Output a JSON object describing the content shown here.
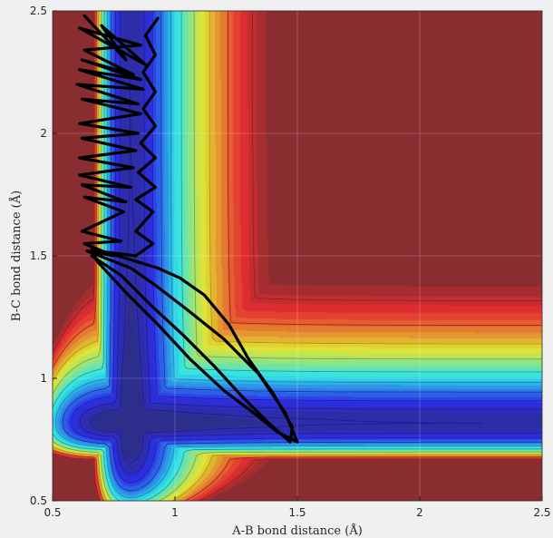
{
  "chart_data": {
    "type": "heatmap",
    "title": "",
    "xlabel": "A-B bond distance (Å)",
    "ylabel": "B-C bond distance (Å)",
    "xlim": [
      0.5,
      2.5
    ],
    "ylim": [
      0.5,
      2.5
    ],
    "x_ticks": [
      "0.5",
      "1",
      "1.5",
      "2",
      "2.5"
    ],
    "y_ticks": [
      "0.5",
      "1",
      "1.5",
      "2",
      "2.5"
    ],
    "grid": true,
    "colormap": "jet",
    "minimum_valley_bc_distance": 0.95,
    "trajectory": {
      "color": "#000000",
      "points": [
        [
          0.63,
          2.48
        ],
        [
          0.8,
          2.3
        ],
        [
          0.7,
          2.44
        ],
        [
          0.88,
          2.28
        ],
        [
          0.61,
          2.43
        ],
        [
          0.86,
          2.36
        ],
        [
          0.63,
          2.34
        ],
        [
          0.83,
          2.24
        ],
        [
          0.62,
          2.3
        ],
        [
          0.86,
          2.22
        ],
        [
          0.61,
          2.26
        ],
        [
          0.87,
          2.18
        ],
        [
          0.6,
          2.2
        ],
        [
          0.85,
          2.12
        ],
        [
          0.62,
          2.14
        ],
        [
          0.86,
          2.08
        ],
        [
          0.61,
          2.04
        ],
        [
          0.85,
          2.0
        ],
        [
          0.62,
          1.98
        ],
        [
          0.84,
          1.93
        ],
        [
          0.61,
          1.9
        ],
        [
          0.83,
          1.86
        ],
        [
          0.61,
          1.83
        ],
        [
          0.82,
          1.78
        ],
        [
          0.62,
          1.79
        ],
        [
          0.8,
          1.72
        ],
        [
          0.63,
          1.74
        ],
        [
          0.79,
          1.68
        ],
        [
          0.62,
          1.6
        ],
        [
          0.78,
          1.56
        ],
        [
          0.63,
          1.55
        ],
        [
          0.75,
          1.5
        ],
        [
          0.64,
          1.52
        ],
        [
          0.82,
          1.45
        ],
        [
          0.92,
          1.38
        ],
        [
          1.05,
          1.28
        ],
        [
          1.2,
          1.16
        ],
        [
          1.34,
          1.02
        ],
        [
          1.45,
          0.86
        ],
        [
          1.5,
          0.74
        ],
        [
          1.42,
          0.78
        ],
        [
          1.32,
          0.86
        ],
        [
          1.2,
          0.95
        ],
        [
          1.06,
          1.08
        ],
        [
          0.93,
          1.22
        ],
        [
          0.8,
          1.35
        ],
        [
          0.68,
          1.48
        ],
        [
          0.66,
          1.53
        ],
        [
          0.8,
          1.49
        ],
        [
          0.93,
          1.45
        ],
        [
          1.02,
          1.41
        ],
        [
          1.12,
          1.34
        ],
        [
          1.22,
          1.22
        ],
        [
          1.3,
          1.08
        ],
        [
          1.4,
          0.94
        ],
        [
          1.48,
          0.8
        ],
        [
          1.47,
          0.74
        ],
        [
          1.38,
          0.82
        ],
        [
          1.27,
          0.93
        ],
        [
          1.16,
          1.05
        ],
        [
          1.03,
          1.18
        ],
        [
          0.9,
          1.3
        ],
        [
          0.78,
          1.42
        ],
        [
          0.66,
          1.5
        ],
        [
          0.68,
          1.52
        ],
        [
          0.84,
          1.5
        ],
        [
          0.91,
          1.55
        ],
        [
          0.84,
          1.6
        ],
        [
          0.91,
          1.68
        ],
        [
          0.84,
          1.73
        ],
        [
          0.92,
          1.78
        ],
        [
          0.85,
          1.84
        ],
        [
          0.92,
          1.9
        ],
        [
          0.86,
          1.96
        ],
        [
          0.92,
          2.03
        ],
        [
          0.87,
          2.1
        ],
        [
          0.92,
          2.17
        ],
        [
          0.87,
          2.25
        ],
        [
          0.92,
          2.32
        ],
        [
          0.88,
          2.4
        ],
        [
          0.93,
          2.47
        ]
      ]
    }
  }
}
